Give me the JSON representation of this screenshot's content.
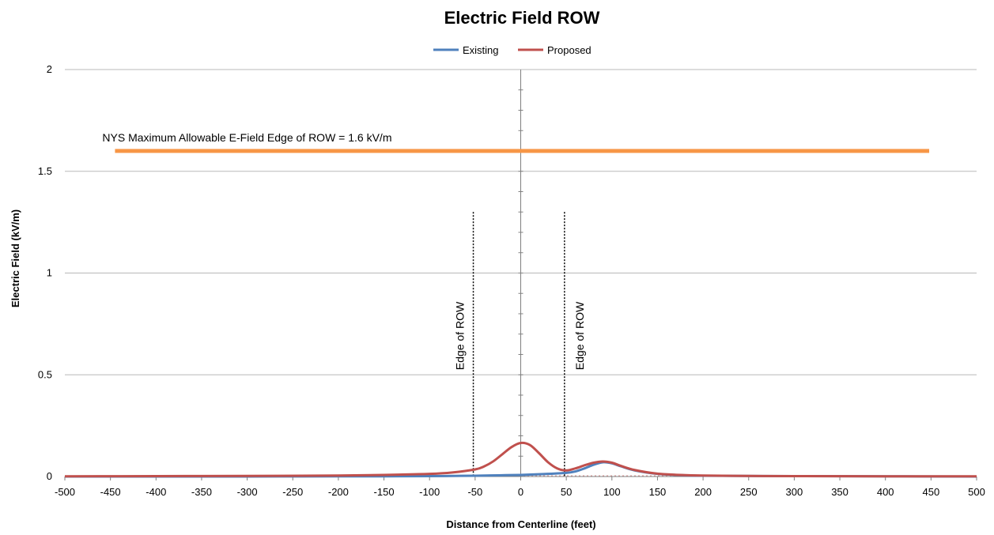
{
  "chart_data": {
    "type": "line",
    "title": "Electric Field ROW",
    "xlabel": "Distance from Centerline (feet)",
    "ylabel": "Electric Field (kV/m)",
    "xlim": [
      -500,
      500
    ],
    "ylim": [
      0,
      2
    ],
    "xticks": [
      "-500",
      "-450",
      "-400",
      "-350",
      "-300",
      "-250",
      "-200",
      "-150",
      "-100",
      "-50",
      "0",
      "50",
      "100",
      "150",
      "200",
      "250",
      "300",
      "350",
      "400",
      "450",
      "500"
    ],
    "yticks": [
      "0",
      "0.5",
      "1",
      "1.5",
      "2"
    ],
    "grid": "horizontal",
    "legend": "top-center",
    "series": [
      {
        "name": "Existing",
        "color": "#4f81bd",
        "x": [
          -500,
          -400,
          -300,
          -200,
          -150,
          -100,
          -75,
          -50,
          -25,
          0,
          25,
          50,
          60,
          70,
          80,
          90,
          100,
          110,
          125,
          150,
          175,
          200,
          300,
          400,
          500
        ],
        "y": [
          0,
          0,
          0,
          0.001,
          0.001,
          0.002,
          0.003,
          0.004,
          0.006,
          0.008,
          0.012,
          0.018,
          0.025,
          0.04,
          0.058,
          0.07,
          0.065,
          0.05,
          0.03,
          0.013,
          0.007,
          0.004,
          0.002,
          0.001,
          0
        ]
      },
      {
        "name": "Proposed",
        "color": "#c0504d",
        "x": [
          -500,
          -400,
          -300,
          -200,
          -150,
          -100,
          -75,
          -50,
          -40,
          -30,
          -20,
          -10,
          0,
          10,
          20,
          30,
          40,
          50,
          60,
          70,
          80,
          90,
          100,
          110,
          125,
          150,
          175,
          200,
          250,
          300,
          400,
          500
        ],
        "y": [
          0.001,
          0.002,
          0.003,
          0.005,
          0.008,
          0.013,
          0.02,
          0.035,
          0.05,
          0.075,
          0.11,
          0.145,
          0.165,
          0.155,
          0.115,
          0.07,
          0.04,
          0.03,
          0.04,
          0.055,
          0.068,
          0.074,
          0.068,
          0.052,
          0.032,
          0.014,
          0.008,
          0.005,
          0.003,
          0.002,
          0.001,
          0.001
        ]
      }
    ],
    "reference_line": {
      "label": "NYS Maximum Allowable E-Field Edge of ROW = 1.6 kV/m",
      "y": 1.6,
      "x_start": -445,
      "x_end": 448,
      "color": "#f79646"
    },
    "edge_lines": [
      {
        "x": -52,
        "label": "Edge of ROW",
        "y_top": 1.3
      },
      {
        "x": 48,
        "label": "Edge of ROW",
        "y_top": 1.3
      }
    ]
  }
}
